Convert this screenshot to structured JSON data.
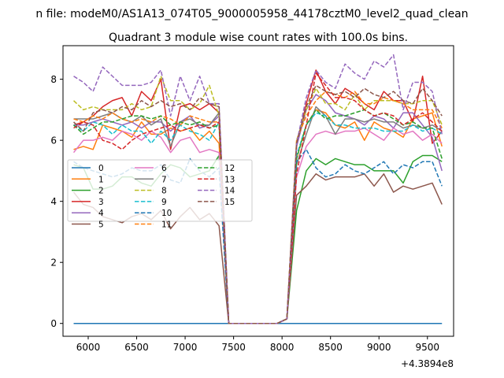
{
  "chart_data": {
    "type": "line",
    "suptitle": "n file: modeM0/AS1A13_074T05_9000005958_44178cztM0_level2_quad_clean",
    "title": "Quadrant 3 module wise count rates with 100.0s bins.",
    "xlabel": "",
    "ylabel": "",
    "x_offset_label": "+4.3894e8",
    "xlim": [
      5740,
      9770
    ],
    "ylim": [
      -0.42,
      9.1
    ],
    "xticks": [
      6000,
      6500,
      7000,
      7500,
      8000,
      8500,
      9000,
      9500
    ],
    "yticks": [
      0,
      2,
      4,
      6,
      8
    ],
    "grid": false,
    "legend": {
      "placement": "center-left",
      "columns": 3
    },
    "x": [
      5850,
      5950,
      6050,
      6150,
      6250,
      6350,
      6450,
      6550,
      6650,
      6750,
      6850,
      6950,
      7050,
      7150,
      7250,
      7350,
      7450,
      7550,
      7650,
      7750,
      7850,
      7950,
      8050,
      8150,
      8250,
      8350,
      8450,
      8550,
      8650,
      8750,
      8850,
      8950,
      9050,
      9150,
      9250,
      9350,
      9450,
      9550,
      9650
    ],
    "series": [
      {
        "name": "0",
        "color": "#1f77b4",
        "dash": "solid",
        "values": [
          0,
          0,
          0,
          0,
          0,
          0,
          0,
          0,
          0,
          0,
          0,
          0,
          0,
          0,
          0,
          0,
          0,
          0,
          0,
          0,
          0,
          0,
          0,
          0,
          0,
          0,
          0,
          0,
          0,
          0,
          0,
          0,
          0,
          0,
          0,
          0,
          0,
          0,
          0
        ]
      },
      {
        "name": "1",
        "color": "#ff7f0e",
        "dash": "solid",
        "values": [
          5.7,
          5.8,
          5.7,
          6.5,
          6.4,
          6.3,
          6.1,
          6.6,
          6.2,
          6.2,
          6.4,
          6.3,
          6.4,
          6.0,
          6.3,
          5.9,
          0,
          0,
          0,
          0,
          0,
          0,
          0.15,
          5.4,
          6.5,
          7.0,
          6.9,
          6.5,
          6.4,
          6.6,
          6.0,
          6.6,
          6.4,
          6.3,
          6.1,
          6.7,
          6.8,
          6.9,
          5.8
        ]
      },
      {
        "name": "2",
        "color": "#2ca02c",
        "dash": "solid",
        "values": [
          5.2,
          5.1,
          4.4,
          4.4,
          4.5,
          4.8,
          4.8,
          4.6,
          4.5,
          4.9,
          5.2,
          5.1,
          4.8,
          4.9,
          5.0,
          5.5,
          0,
          0,
          0,
          0,
          0,
          0,
          0.15,
          3.7,
          5.0,
          5.4,
          5.2,
          5.4,
          5.3,
          5.2,
          5.2,
          5.0,
          5.0,
          5.0,
          4.6,
          5.3,
          5.5,
          5.5,
          5.3
        ]
      },
      {
        "name": "3",
        "color": "#d62728",
        "dash": "solid",
        "values": [
          6.5,
          6.6,
          6.8,
          7.1,
          7.3,
          7.4,
          6.8,
          7.6,
          7.3,
          8.0,
          5.7,
          7.1,
          7.2,
          7.0,
          7.2,
          6.9,
          0,
          0,
          0,
          0,
          0,
          0,
          0.15,
          5.8,
          7.2,
          8.3,
          7.6,
          7.2,
          7.7,
          7.5,
          7.2,
          7.0,
          7.6,
          7.3,
          7.3,
          6.6,
          8.1,
          5.9,
          6.3
        ]
      },
      {
        "name": "4",
        "color": "#9467bd",
        "dash": "solid",
        "values": [
          6.5,
          6.5,
          6.6,
          6.7,
          6.6,
          6.5,
          6.6,
          6.4,
          6.6,
          6.6,
          6.3,
          6.6,
          6.8,
          6.4,
          6.5,
          6.8,
          0,
          0,
          0,
          0,
          0,
          0,
          0.15,
          5.8,
          7.0,
          7.5,
          7.3,
          6.9,
          6.8,
          6.7,
          6.5,
          6.8,
          6.7,
          6.4,
          6.9,
          6.9,
          6.5,
          6.1,
          5.0
        ]
      },
      {
        "name": "5",
        "color": "#8c564b",
        "dash": "solid",
        "values": [
          4.3,
          3.9,
          3.8,
          3.5,
          3.4,
          3.3,
          3.5,
          3.6,
          3.4,
          3.7,
          3.1,
          3.5,
          3.8,
          3.4,
          3.6,
          3.2,
          0,
          0,
          0,
          0,
          0,
          0,
          0.15,
          4.2,
          4.5,
          4.9,
          4.7,
          4.8,
          4.8,
          4.8,
          4.9,
          4.5,
          4.9,
          4.3,
          4.5,
          4.4,
          4.5,
          4.6,
          3.9
        ]
      },
      {
        "name": "6",
        "color": "#e377c2",
        "dash": "solid",
        "values": [
          5.6,
          6.0,
          6.0,
          6.1,
          6.0,
          6.3,
          6.2,
          6.0,
          6.3,
          6.1,
          5.6,
          6.0,
          6.1,
          5.6,
          5.7,
          5.6,
          0,
          0,
          0,
          0,
          0,
          0,
          0.15,
          4.8,
          5.8,
          6.2,
          6.3,
          6.2,
          6.3,
          6.3,
          6.4,
          6.2,
          6.0,
          6.4,
          6.2,
          6.3,
          6.0,
          6.2,
          5.9
        ]
      },
      {
        "name": "7",
        "color": "#7f7f7f",
        "dash": "solid",
        "values": [
          6.7,
          6.7,
          6.7,
          6.8,
          6.9,
          6.7,
          6.6,
          6.8,
          6.5,
          6.7,
          5.8,
          6.6,
          6.7,
          6.5,
          6.5,
          6.9,
          0,
          0,
          0,
          0,
          0,
          0,
          0.15,
          5.2,
          6.2,
          7.1,
          6.8,
          6.2,
          6.7,
          6.7,
          6.6,
          6.7,
          6.6,
          6.6,
          6.4,
          6.5,
          6.4,
          6.5,
          6.3
        ]
      },
      {
        "name": "8",
        "color": "#bcbd22",
        "dash": "dashed",
        "values": [
          7.3,
          7.0,
          7.1,
          7.0,
          7.0,
          7.0,
          7.2,
          7.0,
          7.1,
          8.1,
          7.3,
          7.3,
          7.0,
          7.2,
          7.8,
          6.8,
          0,
          0,
          0,
          0,
          0,
          0,
          0.15,
          6.0,
          7.0,
          7.7,
          7.2,
          7.2,
          7.0,
          7.5,
          7.0,
          7.3,
          7.3,
          7.3,
          7.2,
          7.2,
          7.3,
          7.3,
          6.5
        ]
      },
      {
        "name": "9",
        "color": "#17becf",
        "dash": "dashed",
        "values": [
          6.5,
          6.3,
          6.6,
          6.5,
          6.2,
          6.5,
          6.3,
          6.3,
          5.9,
          6.3,
          6.0,
          6.5,
          6.3,
          6.2,
          6.0,
          6.6,
          0,
          0,
          0,
          0,
          0,
          0,
          0.15,
          5.5,
          6.5,
          6.9,
          6.8,
          6.5,
          6.5,
          6.4,
          6.4,
          6.4,
          6.3,
          6.3,
          6.3,
          6.5,
          6.3,
          6.4,
          6.2
        ]
      },
      {
        "name": "10",
        "color": "#1f77b4",
        "dash": "dashed",
        "values": [
          5.3,
          5.1,
          5.0,
          4.9,
          4.8,
          4.9,
          5.1,
          5.0,
          5.0,
          5.2,
          4.7,
          4.6,
          5.4,
          5.0,
          4.8,
          5.1,
          0,
          0,
          0,
          0,
          0,
          0,
          0.15,
          5.3,
          5.7,
          5.1,
          4.8,
          4.9,
          5.2,
          5.0,
          4.9,
          5.1,
          5.3,
          4.9,
          5.2,
          5.1,
          5.3,
          5.3,
          4.5
        ]
      },
      {
        "name": "11",
        "color": "#ff7f0e",
        "dash": "dashed",
        "values": [
          6.7,
          6.6,
          6.8,
          6.7,
          6.9,
          6.7,
          6.6,
          6.7,
          6.6,
          6.8,
          6.7,
          6.5,
          6.8,
          6.7,
          6.6,
          6.6,
          0,
          0,
          0,
          0,
          0,
          0,
          0.15,
          6.0,
          6.8,
          7.3,
          7.6,
          7.5,
          7.4,
          7.6,
          7.2,
          7.2,
          7.4,
          7.3,
          7.2,
          7.0,
          7.0,
          7.0,
          6.4
        ]
      },
      {
        "name": "12",
        "color": "#2ca02c",
        "dash": "dashed",
        "values": [
          6.5,
          6.2,
          6.4,
          6.6,
          6.6,
          6.7,
          6.8,
          6.8,
          6.7,
          6.8,
          6.5,
          6.6,
          6.5,
          6.6,
          6.4,
          6.5,
          0,
          0,
          0,
          0,
          0,
          0,
          0.15,
          5.4,
          6.5,
          7.0,
          6.7,
          6.8,
          6.8,
          6.9,
          7.0,
          6.8,
          6.9,
          6.7,
          6.5,
          6.6,
          6.4,
          6.4,
          5.4
        ]
      },
      {
        "name": "13",
        "color": "#d62728",
        "dash": "dashed",
        "values": [
          6.4,
          6.6,
          6.5,
          6.0,
          5.9,
          5.7,
          6.0,
          6.2,
          6.3,
          6.4,
          6.5,
          6.3,
          6.4,
          6.5,
          6.4,
          6.6,
          0,
          0,
          0,
          0,
          0,
          0,
          0.15,
          4.9,
          6.5,
          8.2,
          7.8,
          7.4,
          7.4,
          7.3,
          7.0,
          6.8,
          6.9,
          6.8,
          6.5,
          6.7,
          6.9,
          6.6,
          6.3
        ]
      },
      {
        "name": "14",
        "color": "#9467bd",
        "dash": "dashed",
        "values": [
          8.1,
          7.9,
          7.6,
          8.4,
          8.1,
          7.8,
          7.8,
          7.8,
          7.9,
          8.3,
          6.8,
          8.1,
          7.3,
          8.1,
          7.2,
          7.2,
          0,
          0,
          0,
          0,
          0,
          0,
          0.15,
          5.9,
          7.4,
          8.3,
          7.9,
          7.7,
          8.5,
          8.2,
          8.0,
          8.6,
          8.4,
          8.8,
          7.0,
          7.9,
          7.9,
          7.6,
          6.2
        ]
      },
      {
        "name": "15",
        "color": "#8c564b",
        "dash": "dashed",
        "values": [
          6.6,
          6.3,
          6.9,
          7.0,
          6.9,
          7.1,
          7.0,
          7.3,
          7.1,
          7.3,
          7.1,
          7.2,
          7.0,
          7.4,
          7.2,
          7.1,
          0,
          0,
          0,
          0,
          0,
          0,
          0.15,
          5.9,
          7.1,
          7.8,
          7.6,
          7.5,
          7.6,
          7.4,
          7.7,
          7.5,
          7.4,
          7.6,
          7.3,
          7.2,
          7.7,
          7.3,
          6.8
        ]
      }
    ]
  }
}
